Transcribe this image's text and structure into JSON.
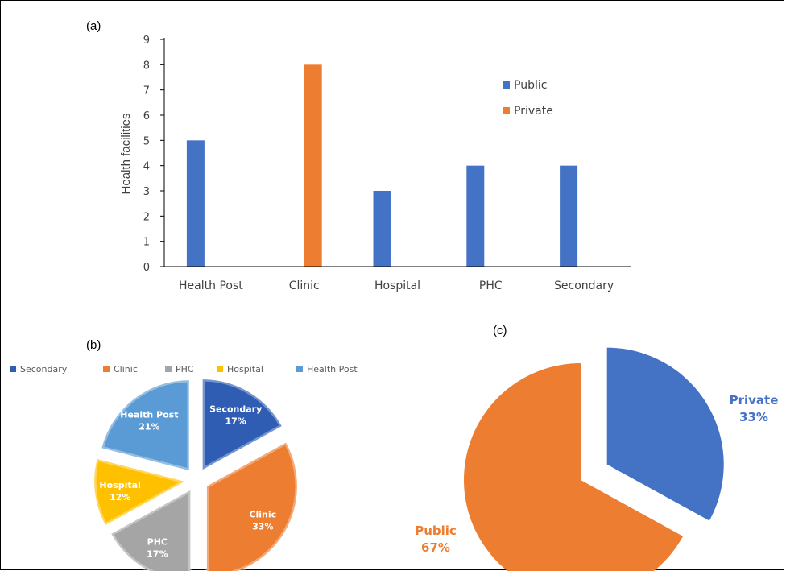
{
  "colors": {
    "public": "#4472C4",
    "private": "#ED7D31",
    "secondary": "#2E5DB3",
    "clinic": "#ED7D31",
    "phc": "#A5A5A5",
    "hospital": "#FFC000",
    "health_post": "#5B9BD5"
  },
  "chart_data": [
    {
      "type": "bar",
      "panel": "(a)",
      "title": "",
      "xlabel": "",
      "ylabel": "Health facilities",
      "ylim": [
        0,
        9
      ],
      "yticks": [
        "0",
        "1",
        "2",
        "3",
        "4",
        "5",
        "6",
        "7",
        "8",
        "9"
      ],
      "categories": [
        "Health Post",
        "Clinic",
        "Hospital",
        "PHC",
        "Secondary"
      ],
      "series": [
        {
          "name": "Public",
          "values": [
            5,
            0,
            3,
            4,
            4
          ]
        },
        {
          "name": "Private",
          "values": [
            0,
            8,
            0,
            0,
            0
          ]
        }
      ],
      "grid": false,
      "legend": "right"
    },
    {
      "type": "pie",
      "panel": "(b)",
      "exploded": true,
      "legend": "top",
      "slices": [
        {
          "name": "Secondary",
          "label": "Secondary",
          "pct": "17%",
          "value": 17
        },
        {
          "name": "Clinic",
          "label": "Clinic",
          "pct": "33%",
          "value": 33
        },
        {
          "name": "PHC",
          "label": "PHC",
          "pct": "17%",
          "value": 17
        },
        {
          "name": "Hospital",
          "label": "Hospital",
          "pct": "12%",
          "value": 12
        },
        {
          "name": "Health Post",
          "label": "Health Post",
          "pct": "21%",
          "value": 21
        }
      ]
    },
    {
      "type": "pie",
      "panel": "(c)",
      "exploded": true,
      "legend": "none",
      "slices": [
        {
          "name": "Private",
          "label": "Private",
          "pct": "33%",
          "value": 33
        },
        {
          "name": "Public",
          "label": "Public",
          "pct": "67%",
          "value": 67
        }
      ]
    }
  ]
}
